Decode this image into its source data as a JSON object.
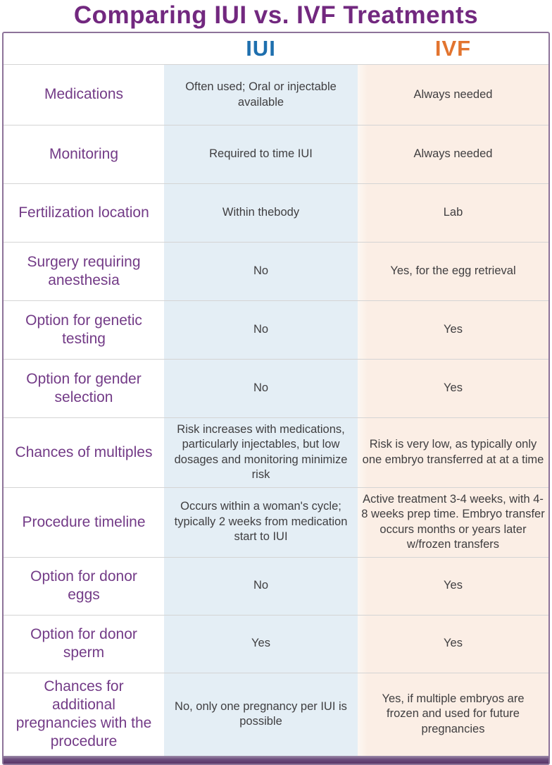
{
  "chart_data": {
    "type": "table",
    "title": "Comparing IUI vs. IVF Treatments",
    "columns": [
      "",
      "IUI",
      "IVF"
    ],
    "rows": [
      [
        "Medications",
        "Often used; Oral or injectable available",
        "Always needed"
      ],
      [
        "Monitoring",
        "Required to time IUI",
        "Always needed"
      ],
      [
        "Fertilization location",
        "Within thebody",
        "Lab"
      ],
      [
        "Surgery requiring anesthesia",
        "No",
        "Yes, for the egg retrieval"
      ],
      [
        "Option for genetic testing",
        "No",
        "Yes"
      ],
      [
        "Option for gender selection",
        "No",
        "Yes"
      ],
      [
        "Chances of multiples",
        "Risk increases with medications, particularly injectables, but low dosages and monitoring minimize risk",
        "Risk is very low, as typically only one embryo transferred at at a time"
      ],
      [
        "Procedure timeline",
        "Occurs within a woman's cycle; typically 2 weeks from medication start to IUI",
        "Active treatment 3-4 weeks, with 4-8 weeks prep time.  Embryo transfer occurs months or years later w/frozen transfers"
      ],
      [
        "Option for donor eggs",
        "No",
        "Yes"
      ],
      [
        "Option for donor sperm",
        "Yes",
        "Yes"
      ],
      [
        "Chances for additional pregnancies with the procedure",
        "No, only one pregnancy per IUI is possible",
        "Yes, if multiple embryos are frozen and used for future pregnancies"
      ]
    ],
    "layout": {
      "header_text_colors": [
        "#1e6fae",
        "#e2742f"
      ],
      "label_column_color": "#733b87",
      "iui_column_bg": "#e4eef5",
      "ivf_column_bg": "#fbeee5"
    }
  },
  "colors": {
    "title_purple": "#72287f",
    "label_purple": "#733b87",
    "iui_blue": "#1e6fae",
    "ivf_orange": "#e2742f",
    "iui_bg": "#e4eef5",
    "ivf_bg": "#fbeee5",
    "border": "#8d7399",
    "divider": "#d4d4d4",
    "body_text": "#3f3e40",
    "bottom_bar": "#6b4d7d"
  }
}
